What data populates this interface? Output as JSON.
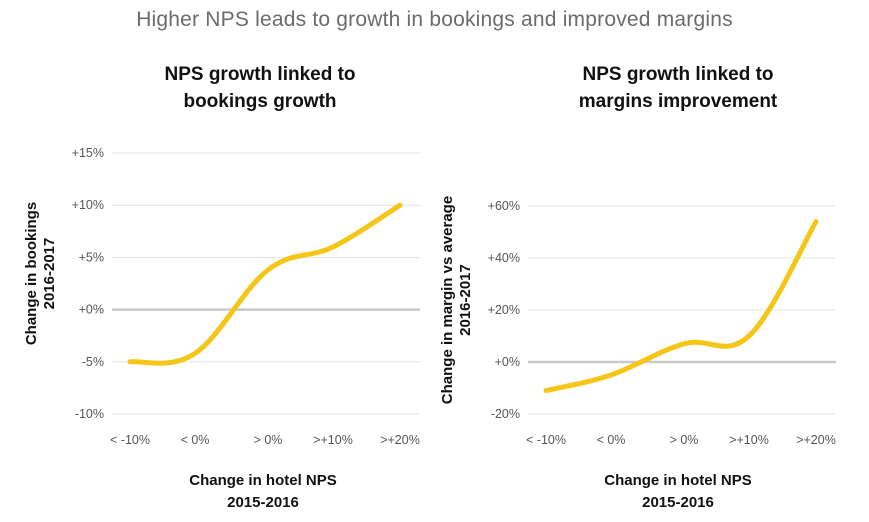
{
  "page_title": "Higher NPS leads to growth in bookings and improved margins",
  "chart_data": [
    {
      "type": "line",
      "title": [
        "NPS growth linked to",
        "bookings growth"
      ],
      "xlabel": [
        "Change in hotel NPS",
        "2015-2016"
      ],
      "ylabel": [
        "Change in bookings",
        "2016-2017"
      ],
      "categories": [
        "< -10%",
        "< 0%",
        "> 0%",
        ">+10%",
        ">+20%"
      ],
      "y_ticks": [
        -10,
        -5,
        0,
        5,
        10,
        15
      ],
      "y_tick_labels": [
        "-10%",
        "-5%",
        "+0%",
        "+5%",
        "+10%",
        "+15%"
      ],
      "ylim": [
        -10,
        15
      ],
      "series": [
        {
          "values": [
            -5,
            -4.2,
            3.8,
            6,
            10
          ],
          "color": "#f5c518"
        }
      ],
      "grid": true,
      "zero_line": true
    },
    {
      "type": "line",
      "title": [
        "NPS growth linked to",
        "margins improvement"
      ],
      "xlabel": [
        "Change in hotel NPS",
        "2015-2016"
      ],
      "ylabel": [
        "Change in margin vs average",
        "2016-2017"
      ],
      "categories": [
        "< -10%",
        "< 0%",
        "> 0%",
        ">+10%",
        ">+20%"
      ],
      "y_ticks": [
        -20,
        0,
        20,
        40,
        60
      ],
      "y_tick_labels": [
        "-20%",
        "+0%",
        "+20%",
        "+40%",
        "+60%"
      ],
      "ylim": [
        -20,
        60
      ],
      "series": [
        {
          "values": [
            -11,
            -5,
            7,
            10,
            54
          ],
          "color": "#f5c518"
        }
      ],
      "grid": true,
      "zero_line": true
    }
  ]
}
